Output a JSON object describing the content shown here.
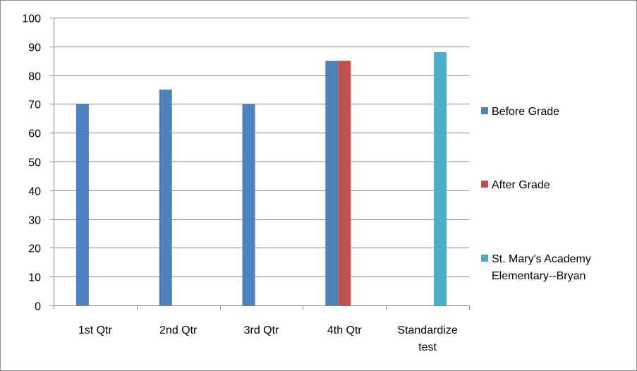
{
  "chart_data": {
    "type": "bar",
    "categories": [
      "1st Qtr",
      "2nd Qtr",
      "3rd Qtr",
      "4th Qtr",
      "Standardize test"
    ],
    "series": [
      {
        "name": "Before Grade",
        "color": "#4F81BD",
        "values": [
          70,
          75,
          70,
          85,
          null
        ]
      },
      {
        "name": "After Grade",
        "color": "#C0504D",
        "values": [
          null,
          null,
          null,
          85,
          null
        ]
      },
      {
        "name": "St. Mary's Academy Elementary--Bryan",
        "color": "#4BACC6",
        "values": [
          null,
          null,
          null,
          null,
          88
        ]
      }
    ],
    "ylim": [
      0,
      100
    ],
    "yticks": [
      0,
      10,
      20,
      30,
      40,
      50,
      60,
      70,
      80,
      90,
      100
    ],
    "grid": true,
    "legend_position": "right"
  }
}
